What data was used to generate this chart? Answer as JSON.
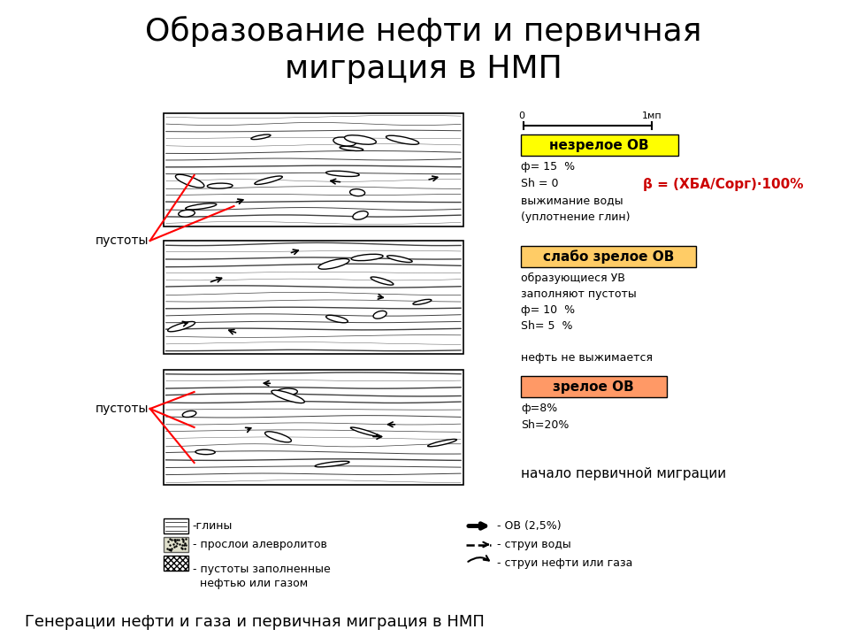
{
  "title": "Образование нефти и первичная\nмиграция в НМП",
  "title_fontsize": 26,
  "background_color": "#ffffff",
  "subtitle": "Генерации нефти и газа и первичная миграция в НМП",
  "subtitle_fontsize": 14,
  "label1": "незрелое ОВ",
  "label1_bg": "#ffff00",
  "label2": "слабо зрелое ОВ",
  "label2_bg": "#ffcc66",
  "label3": "зрелое ОВ",
  "label3_bg": "#ff9966",
  "beta_text": "β = (ХБА/Сорг)·100%",
  "beta_color": "#cc0000",
  "box1_text": "ф= 15  %\nSh = 0\nвыжимание воды\n(уплотнение глин)",
  "box2_text": "образующиеся УВ\nзаполняют пустоты\nф= 10  %\nSh= 5  %\n\nнефть не выжимается",
  "box3_text": "ф=8%\nSh=20%",
  "box3_bottom_text": "начало первичной миграции",
  "pustoty": "пустоты",
  "legend_left": [
    "-глины",
    "- прослои алевролитов",
    "- пустоты заполненные\n  нефтью или газом"
  ],
  "legend_right": [
    "- ОВ (2,5%)",
    "- струи воды",
    "- струи нефти или газа"
  ]
}
